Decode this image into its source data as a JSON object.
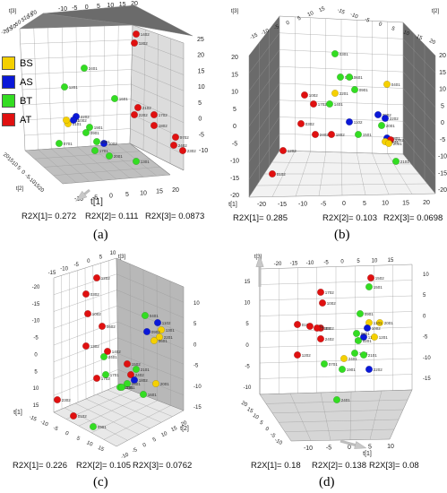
{
  "colors": {
    "BS": "#f5d000",
    "AS": "#0a18d8",
    "BT": "#33dd22",
    "AT": "#e01010"
  },
  "legend": [
    {
      "label": "BS",
      "group": "BS"
    },
    {
      "label": "AS",
      "group": "AS"
    },
    {
      "label": "BT",
      "group": "BT"
    },
    {
      "label": "AT",
      "group": "AT"
    }
  ],
  "chart_data": [
    {
      "type": "scatter",
      "panel_label": "(a)",
      "axes": {
        "x": "t[1]",
        "y": "t[2]",
        "z": "t[3]"
      },
      "r2x": [
        "R2X[1]= 0.272",
        "R2X[2]= 0.111",
        "R2X[3]= 0.0873"
      ],
      "ticks": {
        "top": [
          "-10",
          "-5",
          "0",
          "5",
          "10",
          "15",
          "20"
        ],
        "right": [
          "25",
          "20",
          "15",
          "10",
          "5",
          "0",
          "-5",
          "-10"
        ],
        "left_top": [
          "-20",
          "-15",
          "-10",
          "-5",
          "0",
          "5",
          "10",
          "15",
          "20"
        ],
        "bottom_x": [
          "20",
          "15",
          "10",
          "5",
          "0",
          "-5",
          "-10",
          "-15",
          "-20"
        ],
        "bottom_y": [
          "-10",
          "-5",
          "0",
          "5",
          "10",
          "15",
          "20"
        ],
        "right_col": [
          "25",
          "20",
          "15",
          "10",
          "5",
          "0",
          "-5",
          "-10"
        ]
      },
      "points": [
        {
          "g": "AT",
          "label": "1402"
        },
        {
          "g": "AT",
          "label": "1202"
        },
        {
          "g": "BT",
          "label": "2401"
        },
        {
          "g": "BT",
          "label": "1201"
        },
        {
          "g": "BT",
          "label": "1601"
        },
        {
          "g": "AT",
          "label": "2102"
        },
        {
          "g": "AT",
          "label": "2202"
        },
        {
          "g": "AT",
          "label": "1702"
        },
        {
          "g": "AT",
          "label": "1802"
        },
        {
          "g": "AT",
          "label": "0702"
        },
        {
          "g": "AS",
          "label": "2202"
        },
        {
          "g": "BS",
          "label": "0101"
        },
        {
          "g": "BS",
          "label": "2201"
        },
        {
          "g": "AS",
          "label": "1002"
        },
        {
          "g": "AT",
          "label": "2402"
        },
        {
          "g": "BT",
          "label": "1901"
        },
        {
          "g": "BT",
          "label": "0901"
        },
        {
          "g": "AS",
          "label": "1002"
        },
        {
          "g": "BT",
          "label": "1801"
        },
        {
          "g": "BT",
          "label": "0701"
        },
        {
          "g": "BT",
          "label": "1701"
        },
        {
          "g": "BT",
          "label": "2001"
        },
        {
          "g": "AT",
          "label": "2302"
        },
        {
          "g": "BT",
          "label": "1301"
        }
      ]
    },
    {
      "type": "scatter",
      "panel_label": "(b)",
      "axes": {
        "x": "t[1]",
        "y": "t[2]",
        "z": "t[3]"
      },
      "r2x": [
        "R2X[1]= 0.285",
        "R2X[2]= 0.103",
        "R2X[3]= 0.0698"
      ],
      "ticks": {
        "top_left": [
          "-15",
          "-10",
          "-5",
          "0",
          "5",
          "10",
          "15"
        ],
        "top_right": [
          "-15",
          "-10",
          "-5",
          "0",
          "5",
          "10",
          "15",
          "20"
        ],
        "left": [
          "20",
          "15",
          "10",
          "5",
          "0",
          "-5",
          "-10",
          "-15",
          "-20"
        ],
        "right": [
          "20",
          "15",
          "10",
          "5",
          "0",
          "-5",
          "-10",
          "-15",
          "-20"
        ],
        "bottom_x": [
          "-20",
          "-15",
          "-10",
          "-5",
          "0",
          "5",
          "10",
          "15",
          "20"
        ]
      },
      "points": [
        {
          "g": "BT",
          "label": "0301"
        },
        {
          "g": "BT",
          "label": "0501"
        },
        {
          "g": "BS",
          "label": "0401"
        },
        {
          "g": "BT",
          "label": "0601"
        },
        {
          "g": "BS",
          "label": "2201"
        },
        {
          "g": "BT",
          "label": "0901"
        },
        {
          "g": "AT",
          "label": "1002"
        },
        {
          "g": "AT",
          "label": "1702"
        },
        {
          "g": "BT",
          "label": "1401"
        },
        {
          "g": "AS",
          "label": "0902"
        },
        {
          "g": "AS",
          "label": "2202"
        },
        {
          "g": "AS",
          "label": "1102"
        },
        {
          "g": "BT",
          "label": "2001"
        },
        {
          "g": "AT",
          "label": "0302"
        },
        {
          "g": "AT",
          "label": "2402"
        },
        {
          "g": "AT",
          "label": "1802"
        },
        {
          "g": "BT",
          "label": "1501"
        },
        {
          "g": "AS",
          "label": "0801"
        },
        {
          "g": "AT",
          "label": "2302"
        },
        {
          "g": "BS",
          "label": "1101"
        },
        {
          "g": "BS",
          "label": "2001"
        },
        {
          "g": "AT",
          "label": "1202"
        },
        {
          "g": "AT",
          "label": "0102"
        },
        {
          "g": "BT",
          "label": "2101"
        }
      ]
    },
    {
      "type": "scatter",
      "panel_label": "(c)",
      "axes": {
        "x": "t[1]",
        "y": "t[2]",
        "z": "t[3]"
      },
      "r2x": [
        "R2X[1]= 0.226",
        "R2X[2]= 0.105",
        "R2X[3]= 0.0762"
      ],
      "ticks": {
        "top": [
          "-15",
          "-10",
          "-5",
          "0",
          "5",
          "10"
        ],
        "left": [
          "-20",
          "-15",
          "-10",
          "-5",
          "0",
          "5",
          "10",
          "15"
        ],
        "bottom_x": [
          "-15",
          "-10",
          "-5",
          "0",
          "5",
          "10",
          "15"
        ],
        "bottom_y": [
          "-10",
          "-5",
          "0",
          "5",
          "10",
          "15",
          "20"
        ],
        "right": [
          "10",
          "5",
          "0",
          "-5",
          "-10",
          "-15"
        ]
      },
      "points": [
        {
          "g": "AT",
          "label": "1202"
        },
        {
          "g": "AT",
          "label": "0302"
        },
        {
          "g": "AT",
          "label": "1002"
        },
        {
          "g": "AT",
          "label": "0602"
        },
        {
          "g": "BT",
          "label": "0401"
        },
        {
          "g": "AS",
          "label": "1102"
        },
        {
          "g": "BS",
          "label": "1301"
        },
        {
          "g": "AS",
          "label": "0902"
        },
        {
          "g": "BS",
          "label": "2201"
        },
        {
          "g": "BS",
          "label": "0601"
        },
        {
          "g": "AT",
          "label": "1302"
        },
        {
          "g": "AT",
          "label": "1402"
        },
        {
          "g": "BT",
          "label": "2401"
        },
        {
          "g": "AT",
          "label": "1502"
        },
        {
          "g": "BT",
          "label": "2101"
        },
        {
          "g": "AT",
          "label": "2402"
        },
        {
          "g": "BT",
          "label": "1701"
        },
        {
          "g": "AT",
          "label": "1702"
        },
        {
          "g": "AS",
          "label": "1802"
        },
        {
          "g": "BT",
          "label": "0801"
        },
        {
          "g": "BT",
          "label": "1201"
        },
        {
          "g": "BT",
          "label": "0301"
        },
        {
          "g": "BS",
          "label": "2001"
        },
        {
          "g": "BT",
          "label": "1601"
        },
        {
          "g": "AT",
          "label": "2302"
        },
        {
          "g": "AT",
          "label": "0102"
        },
        {
          "g": "BT",
          "label": "0901"
        }
      ]
    },
    {
      "type": "scatter",
      "panel_label": "(d)",
      "axes": {
        "x": "t[1]",
        "y": "t[2]",
        "z": "t[3]"
      },
      "r2x": [
        "R2X[1]= 0.18",
        "R2X[2]= 0.138",
        "R2X[3]= 0.08"
      ],
      "ticks": {
        "top": [
          "-20",
          "-15",
          "-10",
          "-5",
          "0",
          "5",
          "10",
          "15"
        ],
        "left": [
          "15",
          "10",
          "5",
          "0",
          "-5",
          "-10"
        ],
        "right": [
          "10",
          "5",
          "0",
          "-5",
          "-10",
          "-15"
        ],
        "bottom_x": [
          "-10",
          "-5",
          "0",
          "5",
          "10"
        ],
        "bottom_y": [
          "20",
          "15",
          "10",
          "5",
          "0",
          "-5",
          "-10"
        ]
      },
      "points": [
        {
          "g": "AT",
          "label": "1502"
        },
        {
          "g": "BT",
          "label": "1501"
        },
        {
          "g": "AT",
          "label": "1702"
        },
        {
          "g": "AT",
          "label": "1002"
        },
        {
          "g": "BT",
          "label": "0901"
        },
        {
          "g": "BS",
          "label": "2001"
        },
        {
          "g": "BS",
          "label": "1101"
        },
        {
          "g": "AT",
          "label": "0302"
        },
        {
          "g": "AT",
          "label": "0102"
        },
        {
          "g": "AT",
          "label": "2202"
        },
        {
          "g": "AT",
          "label": "2102"
        },
        {
          "g": "AS",
          "label": "1002"
        },
        {
          "g": "AS",
          "label": "1102"
        },
        {
          "g": "BT",
          "label": "0801"
        },
        {
          "g": "BS",
          "label": "1201"
        },
        {
          "g": "AT",
          "label": "2402"
        },
        {
          "g": "BT",
          "label": "0201"
        },
        {
          "g": "AT",
          "label": "1202"
        },
        {
          "g": "BT",
          "label": "1701"
        },
        {
          "g": "BT",
          "label": "2101"
        },
        {
          "g": "BS",
          "label": "2401"
        },
        {
          "g": "AS",
          "label": "2202"
        },
        {
          "g": "BT",
          "label": "1901"
        },
        {
          "g": "BT",
          "label": "0701"
        },
        {
          "g": "BT",
          "label": "2401"
        }
      ]
    }
  ]
}
